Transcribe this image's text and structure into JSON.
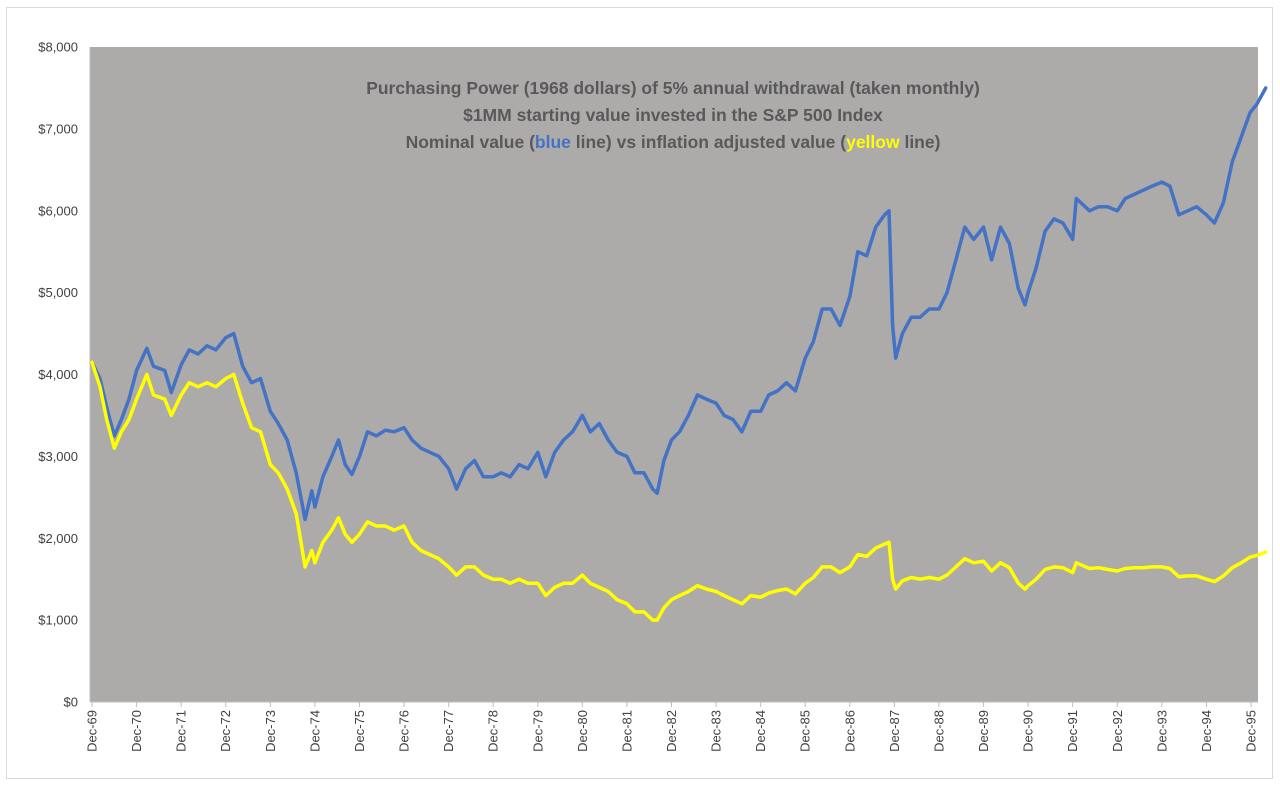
{
  "chart_data": {
    "type": "line",
    "title_lines": [
      [
        {
          "text": "Purchasing Power (1968 dollars) of 5% annual withdrawal (taken monthly)",
          "color": "#595959"
        }
      ],
      [
        {
          "text": "$1MM starting value invested in the S&P 500 Index",
          "color": "#595959"
        }
      ],
      [
        {
          "text": "Nominal value (",
          "color": "#595959"
        },
        {
          "text": "blue",
          "color": "#4472c4"
        },
        {
          "text": " line) vs inflation adjusted value (",
          "color": "#595959"
        },
        {
          "text": "yellow",
          "color": "#ffff00"
        },
        {
          "text": " line)",
          "color": "#595959"
        }
      ]
    ],
    "xlabel": "",
    "ylabel": "",
    "x_tick_labels": [
      "Dec-69",
      "Dec-70",
      "Dec-71",
      "Dec-72",
      "Dec-73",
      "Dec-74",
      "Dec-75",
      "Dec-76",
      "Dec-77",
      "Dec-78",
      "Dec-79",
      "Dec-80",
      "Dec-81",
      "Dec-82",
      "Dec-83",
      "Dec-84",
      "Dec-85",
      "Dec-86",
      "Dec-87",
      "Dec-88",
      "Dec-89",
      "Dec-90",
      "Dec-91",
      "Dec-92",
      "Dec-93",
      "Dec-94",
      "Dec-95"
    ],
    "y_tick_labels": [
      "$0",
      "$1,000",
      "$2,000",
      "$3,000",
      "$4,000",
      "$5,000",
      "$6,000",
      "$7,000",
      "$8,000"
    ],
    "ylim": [
      0,
      8000
    ],
    "grid": false,
    "plot_background": "#adaaaa",
    "series": [
      {
        "color": "#4472c4",
        "points": [
          [
            1969.92,
            4150
          ],
          [
            1970.1,
            3950
          ],
          [
            1970.25,
            3600
          ],
          [
            1970.42,
            3250
          ],
          [
            1970.58,
            3450
          ],
          [
            1970.75,
            3700
          ],
          [
            1970.92,
            4050
          ],
          [
            1971.15,
            4320
          ],
          [
            1971.3,
            4100
          ],
          [
            1971.55,
            4050
          ],
          [
            1971.7,
            3780
          ],
          [
            1971.92,
            4120
          ],
          [
            1972.1,
            4300
          ],
          [
            1972.3,
            4250
          ],
          [
            1972.5,
            4350
          ],
          [
            1972.7,
            4300
          ],
          [
            1972.92,
            4450
          ],
          [
            1973.1,
            4500
          ],
          [
            1973.3,
            4100
          ],
          [
            1973.5,
            3900
          ],
          [
            1973.7,
            3950
          ],
          [
            1973.92,
            3550
          ],
          [
            1974.1,
            3400
          ],
          [
            1974.3,
            3200
          ],
          [
            1974.5,
            2800
          ],
          [
            1974.7,
            2230
          ],
          [
            1974.85,
            2580
          ],
          [
            1974.92,
            2380
          ],
          [
            1975.1,
            2750
          ],
          [
            1975.3,
            3000
          ],
          [
            1975.45,
            3200
          ],
          [
            1975.6,
            2900
          ],
          [
            1975.75,
            2780
          ],
          [
            1975.92,
            3000
          ],
          [
            1976.1,
            3300
          ],
          [
            1976.3,
            3250
          ],
          [
            1976.5,
            3320
          ],
          [
            1976.7,
            3300
          ],
          [
            1976.92,
            3350
          ],
          [
            1977.1,
            3200
          ],
          [
            1977.3,
            3100
          ],
          [
            1977.5,
            3050
          ],
          [
            1977.7,
            3000
          ],
          [
            1977.92,
            2850
          ],
          [
            1978.1,
            2600
          ],
          [
            1978.3,
            2850
          ],
          [
            1978.5,
            2950
          ],
          [
            1978.7,
            2750
          ],
          [
            1978.92,
            2750
          ],
          [
            1979.1,
            2800
          ],
          [
            1979.3,
            2750
          ],
          [
            1979.5,
            2900
          ],
          [
            1979.7,
            2850
          ],
          [
            1979.92,
            3050
          ],
          [
            1980.1,
            2750
          ],
          [
            1980.3,
            3050
          ],
          [
            1980.5,
            3200
          ],
          [
            1980.7,
            3300
          ],
          [
            1980.92,
            3500
          ],
          [
            1981.1,
            3300
          ],
          [
            1981.3,
            3400
          ],
          [
            1981.5,
            3200
          ],
          [
            1981.7,
            3050
          ],
          [
            1981.92,
            3000
          ],
          [
            1982.1,
            2800
          ],
          [
            1982.3,
            2800
          ],
          [
            1982.5,
            2600
          ],
          [
            1982.6,
            2550
          ],
          [
            1982.75,
            2950
          ],
          [
            1982.92,
            3200
          ],
          [
            1983.1,
            3300
          ],
          [
            1983.3,
            3500
          ],
          [
            1983.5,
            3750
          ],
          [
            1983.7,
            3700
          ],
          [
            1983.92,
            3650
          ],
          [
            1984.1,
            3500
          ],
          [
            1984.3,
            3450
          ],
          [
            1984.5,
            3300
          ],
          [
            1984.7,
            3550
          ],
          [
            1984.92,
            3550
          ],
          [
            1985.1,
            3750
          ],
          [
            1985.3,
            3800
          ],
          [
            1985.5,
            3900
          ],
          [
            1985.7,
            3800
          ],
          [
            1985.92,
            4200
          ],
          [
            1986.1,
            4400
          ],
          [
            1986.3,
            4800
          ],
          [
            1986.5,
            4800
          ],
          [
            1986.7,
            4600
          ],
          [
            1986.92,
            4950
          ],
          [
            1987.1,
            5500
          ],
          [
            1987.3,
            5450
          ],
          [
            1987.5,
            5800
          ],
          [
            1987.7,
            5950
          ],
          [
            1987.8,
            6000
          ],
          [
            1987.88,
            4600
          ],
          [
            1987.95,
            4200
          ],
          [
            1988.1,
            4500
          ],
          [
            1988.3,
            4700
          ],
          [
            1988.5,
            4700
          ],
          [
            1988.7,
            4800
          ],
          [
            1988.92,
            4800
          ],
          [
            1989.1,
            5000
          ],
          [
            1989.3,
            5400
          ],
          [
            1989.5,
            5800
          ],
          [
            1989.7,
            5650
          ],
          [
            1989.92,
            5800
          ],
          [
            1990.1,
            5400
          ],
          [
            1990.3,
            5800
          ],
          [
            1990.5,
            5600
          ],
          [
            1990.7,
            5050
          ],
          [
            1990.85,
            4850
          ],
          [
            1990.92,
            5000
          ],
          [
            1991.1,
            5300
          ],
          [
            1991.3,
            5750
          ],
          [
            1991.5,
            5900
          ],
          [
            1991.7,
            5850
          ],
          [
            1991.92,
            5650
          ],
          [
            1992.0,
            6150
          ],
          [
            1992.3,
            6000
          ],
          [
            1992.5,
            6050
          ],
          [
            1992.7,
            6050
          ],
          [
            1992.92,
            6000
          ],
          [
            1993.1,
            6150
          ],
          [
            1993.3,
            6200
          ],
          [
            1993.5,
            6250
          ],
          [
            1993.7,
            6300
          ],
          [
            1993.92,
            6350
          ],
          [
            1994.1,
            6300
          ],
          [
            1994.3,
            5950
          ],
          [
            1994.5,
            6000
          ],
          [
            1994.7,
            6050
          ],
          [
            1994.92,
            5950
          ],
          [
            1995.1,
            5850
          ],
          [
            1995.3,
            6100
          ],
          [
            1995.5,
            6600
          ],
          [
            1995.7,
            6900
          ],
          [
            1995.9,
            7200
          ],
          [
            1996.05,
            7300
          ],
          [
            1996.25,
            7500
          ]
        ]
      },
      {
        "color": "#ffff00",
        "points": [
          [
            1969.92,
            4150
          ],
          [
            1970.1,
            3850
          ],
          [
            1970.25,
            3450
          ],
          [
            1970.42,
            3100
          ],
          [
            1970.58,
            3300
          ],
          [
            1970.75,
            3450
          ],
          [
            1970.92,
            3700
          ],
          [
            1971.15,
            4000
          ],
          [
            1971.3,
            3750
          ],
          [
            1971.55,
            3700
          ],
          [
            1971.7,
            3500
          ],
          [
            1971.92,
            3750
          ],
          [
            1972.1,
            3900
          ],
          [
            1972.3,
            3850
          ],
          [
            1972.5,
            3900
          ],
          [
            1972.7,
            3850
          ],
          [
            1972.92,
            3950
          ],
          [
            1973.1,
            4000
          ],
          [
            1973.3,
            3650
          ],
          [
            1973.5,
            3350
          ],
          [
            1973.7,
            3300
          ],
          [
            1973.92,
            2900
          ],
          [
            1974.1,
            2800
          ],
          [
            1974.3,
            2600
          ],
          [
            1974.5,
            2300
          ],
          [
            1974.7,
            1650
          ],
          [
            1974.85,
            1850
          ],
          [
            1974.92,
            1700
          ],
          [
            1975.1,
            1950
          ],
          [
            1975.3,
            2100
          ],
          [
            1975.45,
            2250
          ],
          [
            1975.6,
            2050
          ],
          [
            1975.75,
            1950
          ],
          [
            1975.92,
            2050
          ],
          [
            1976.1,
            2200
          ],
          [
            1976.3,
            2150
          ],
          [
            1976.5,
            2150
          ],
          [
            1976.7,
            2100
          ],
          [
            1976.92,
            2150
          ],
          [
            1977.1,
            1950
          ],
          [
            1977.3,
            1850
          ],
          [
            1977.5,
            1800
          ],
          [
            1977.7,
            1750
          ],
          [
            1977.92,
            1650
          ],
          [
            1978.1,
            1550
          ],
          [
            1978.3,
            1650
          ],
          [
            1978.5,
            1650
          ],
          [
            1978.7,
            1550
          ],
          [
            1978.92,
            1500
          ],
          [
            1979.1,
            1500
          ],
          [
            1979.3,
            1450
          ],
          [
            1979.5,
            1500
          ],
          [
            1979.7,
            1450
          ],
          [
            1979.92,
            1450
          ],
          [
            1980.1,
            1300
          ],
          [
            1980.3,
            1400
          ],
          [
            1980.5,
            1450
          ],
          [
            1980.7,
            1450
          ],
          [
            1980.92,
            1550
          ],
          [
            1981.1,
            1450
          ],
          [
            1981.3,
            1400
          ],
          [
            1981.5,
            1350
          ],
          [
            1981.7,
            1250
          ],
          [
            1981.92,
            1200
          ],
          [
            1982.1,
            1100
          ],
          [
            1982.3,
            1100
          ],
          [
            1982.5,
            1000
          ],
          [
            1982.6,
            1000
          ],
          [
            1982.75,
            1150
          ],
          [
            1982.92,
            1250
          ],
          [
            1983.1,
            1300
          ],
          [
            1983.3,
            1350
          ],
          [
            1983.5,
            1420
          ],
          [
            1983.7,
            1380
          ],
          [
            1983.92,
            1350
          ],
          [
            1984.1,
            1300
          ],
          [
            1984.3,
            1250
          ],
          [
            1984.5,
            1200
          ],
          [
            1984.7,
            1300
          ],
          [
            1984.92,
            1280
          ],
          [
            1985.1,
            1330
          ],
          [
            1985.3,
            1360
          ],
          [
            1985.5,
            1380
          ],
          [
            1985.7,
            1320
          ],
          [
            1985.92,
            1450
          ],
          [
            1986.1,
            1520
          ],
          [
            1986.3,
            1650
          ],
          [
            1986.5,
            1650
          ],
          [
            1986.7,
            1580
          ],
          [
            1986.92,
            1650
          ],
          [
            1987.1,
            1800
          ],
          [
            1987.3,
            1780
          ],
          [
            1987.5,
            1880
          ],
          [
            1987.7,
            1930
          ],
          [
            1987.8,
            1950
          ],
          [
            1987.88,
            1500
          ],
          [
            1987.95,
            1380
          ],
          [
            1988.1,
            1480
          ],
          [
            1988.3,
            1520
          ],
          [
            1988.5,
            1500
          ],
          [
            1988.7,
            1520
          ],
          [
            1988.92,
            1500
          ],
          [
            1989.1,
            1550
          ],
          [
            1989.3,
            1650
          ],
          [
            1989.5,
            1750
          ],
          [
            1989.7,
            1700
          ],
          [
            1989.92,
            1720
          ],
          [
            1990.1,
            1600
          ],
          [
            1990.3,
            1700
          ],
          [
            1990.5,
            1640
          ],
          [
            1990.7,
            1450
          ],
          [
            1990.85,
            1380
          ],
          [
            1990.92,
            1420
          ],
          [
            1991.1,
            1500
          ],
          [
            1991.3,
            1620
          ],
          [
            1991.5,
            1650
          ],
          [
            1991.7,
            1640
          ],
          [
            1991.92,
            1580
          ],
          [
            1992.0,
            1700
          ],
          [
            1992.3,
            1630
          ],
          [
            1992.5,
            1640
          ],
          [
            1992.7,
            1620
          ],
          [
            1992.92,
            1600
          ],
          [
            1993.1,
            1630
          ],
          [
            1993.3,
            1640
          ],
          [
            1993.5,
            1640
          ],
          [
            1993.7,
            1650
          ],
          [
            1993.92,
            1650
          ],
          [
            1994.1,
            1630
          ],
          [
            1994.3,
            1530
          ],
          [
            1994.5,
            1540
          ],
          [
            1994.7,
            1540
          ],
          [
            1994.92,
            1500
          ],
          [
            1995.1,
            1470
          ],
          [
            1995.3,
            1540
          ],
          [
            1995.5,
            1640
          ],
          [
            1995.7,
            1700
          ],
          [
            1995.9,
            1770
          ],
          [
            1996.05,
            1790
          ],
          [
            1996.25,
            1830
          ]
        ]
      }
    ]
  }
}
